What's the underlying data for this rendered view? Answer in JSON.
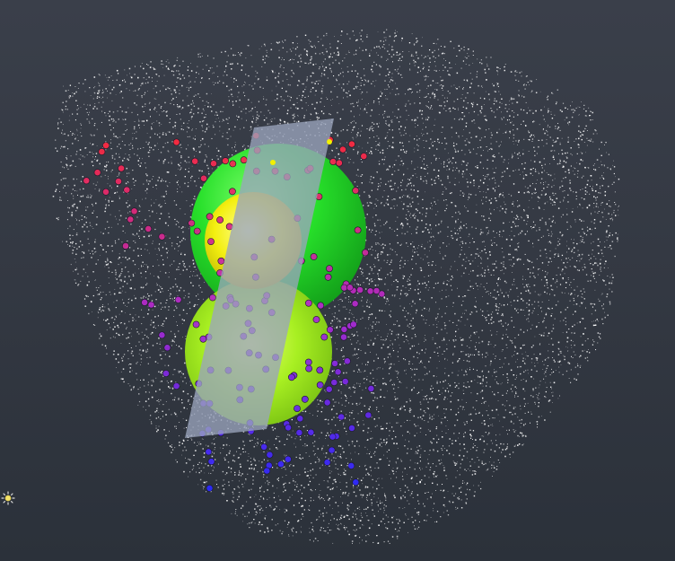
{
  "viewer": {
    "background_top": "#3a3f4a",
    "background_bottom": "#2b313a",
    "point_cloud_color": "#ffffff",
    "plane_color": "#9aa4bd",
    "sphere_colors": {
      "inner_yellow": "#f2f000",
      "upper_green": "#22e022",
      "lower_lime": "#a6ef1e"
    },
    "marker_gradient": [
      "#ff2a3a",
      "#b02ad0",
      "#2a2aff"
    ]
  },
  "controls": {
    "light_icon": "sun-icon"
  }
}
